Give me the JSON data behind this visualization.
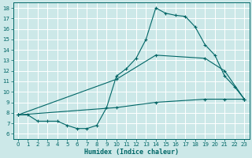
{
  "xlabel": "Humidex (Indice chaleur)",
  "bg_color": "#cce8e8",
  "line_color": "#006666",
  "grid_color": "#b8d8d8",
  "xlim": [
    -0.5,
    23.5
  ],
  "ylim": [
    5.5,
    18.5
  ],
  "yticks": [
    6,
    7,
    8,
    9,
    10,
    11,
    12,
    13,
    14,
    15,
    16,
    17,
    18
  ],
  "xticks": [
    0,
    1,
    2,
    3,
    4,
    5,
    6,
    7,
    8,
    9,
    10,
    11,
    12,
    13,
    14,
    15,
    16,
    17,
    18,
    19,
    20,
    21,
    22,
    23
  ],
  "curve1_x": [
    0,
    1,
    2,
    3,
    4,
    5,
    6,
    7,
    8,
    9,
    10,
    11,
    12,
    13,
    14,
    15,
    16,
    17,
    18,
    19,
    20,
    21,
    22,
    23
  ],
  "curve1_y": [
    7.8,
    7.8,
    7.2,
    7.2,
    7.2,
    6.8,
    6.5,
    6.5,
    6.8,
    8.5,
    11.5,
    12.2,
    13.2,
    15.0,
    18.0,
    17.5,
    17.3,
    17.2,
    16.2,
    14.5,
    13.5,
    11.5,
    10.5,
    9.3
  ],
  "curve2_x": [
    0,
    10,
    14,
    19,
    21,
    23
  ],
  "curve2_y": [
    7.8,
    11.2,
    13.5,
    13.2,
    12.0,
    9.3
  ],
  "curve3_x": [
    0,
    10,
    14,
    19,
    21,
    23
  ],
  "curve3_y": [
    7.8,
    8.5,
    9.0,
    9.3,
    9.3,
    9.3
  ]
}
